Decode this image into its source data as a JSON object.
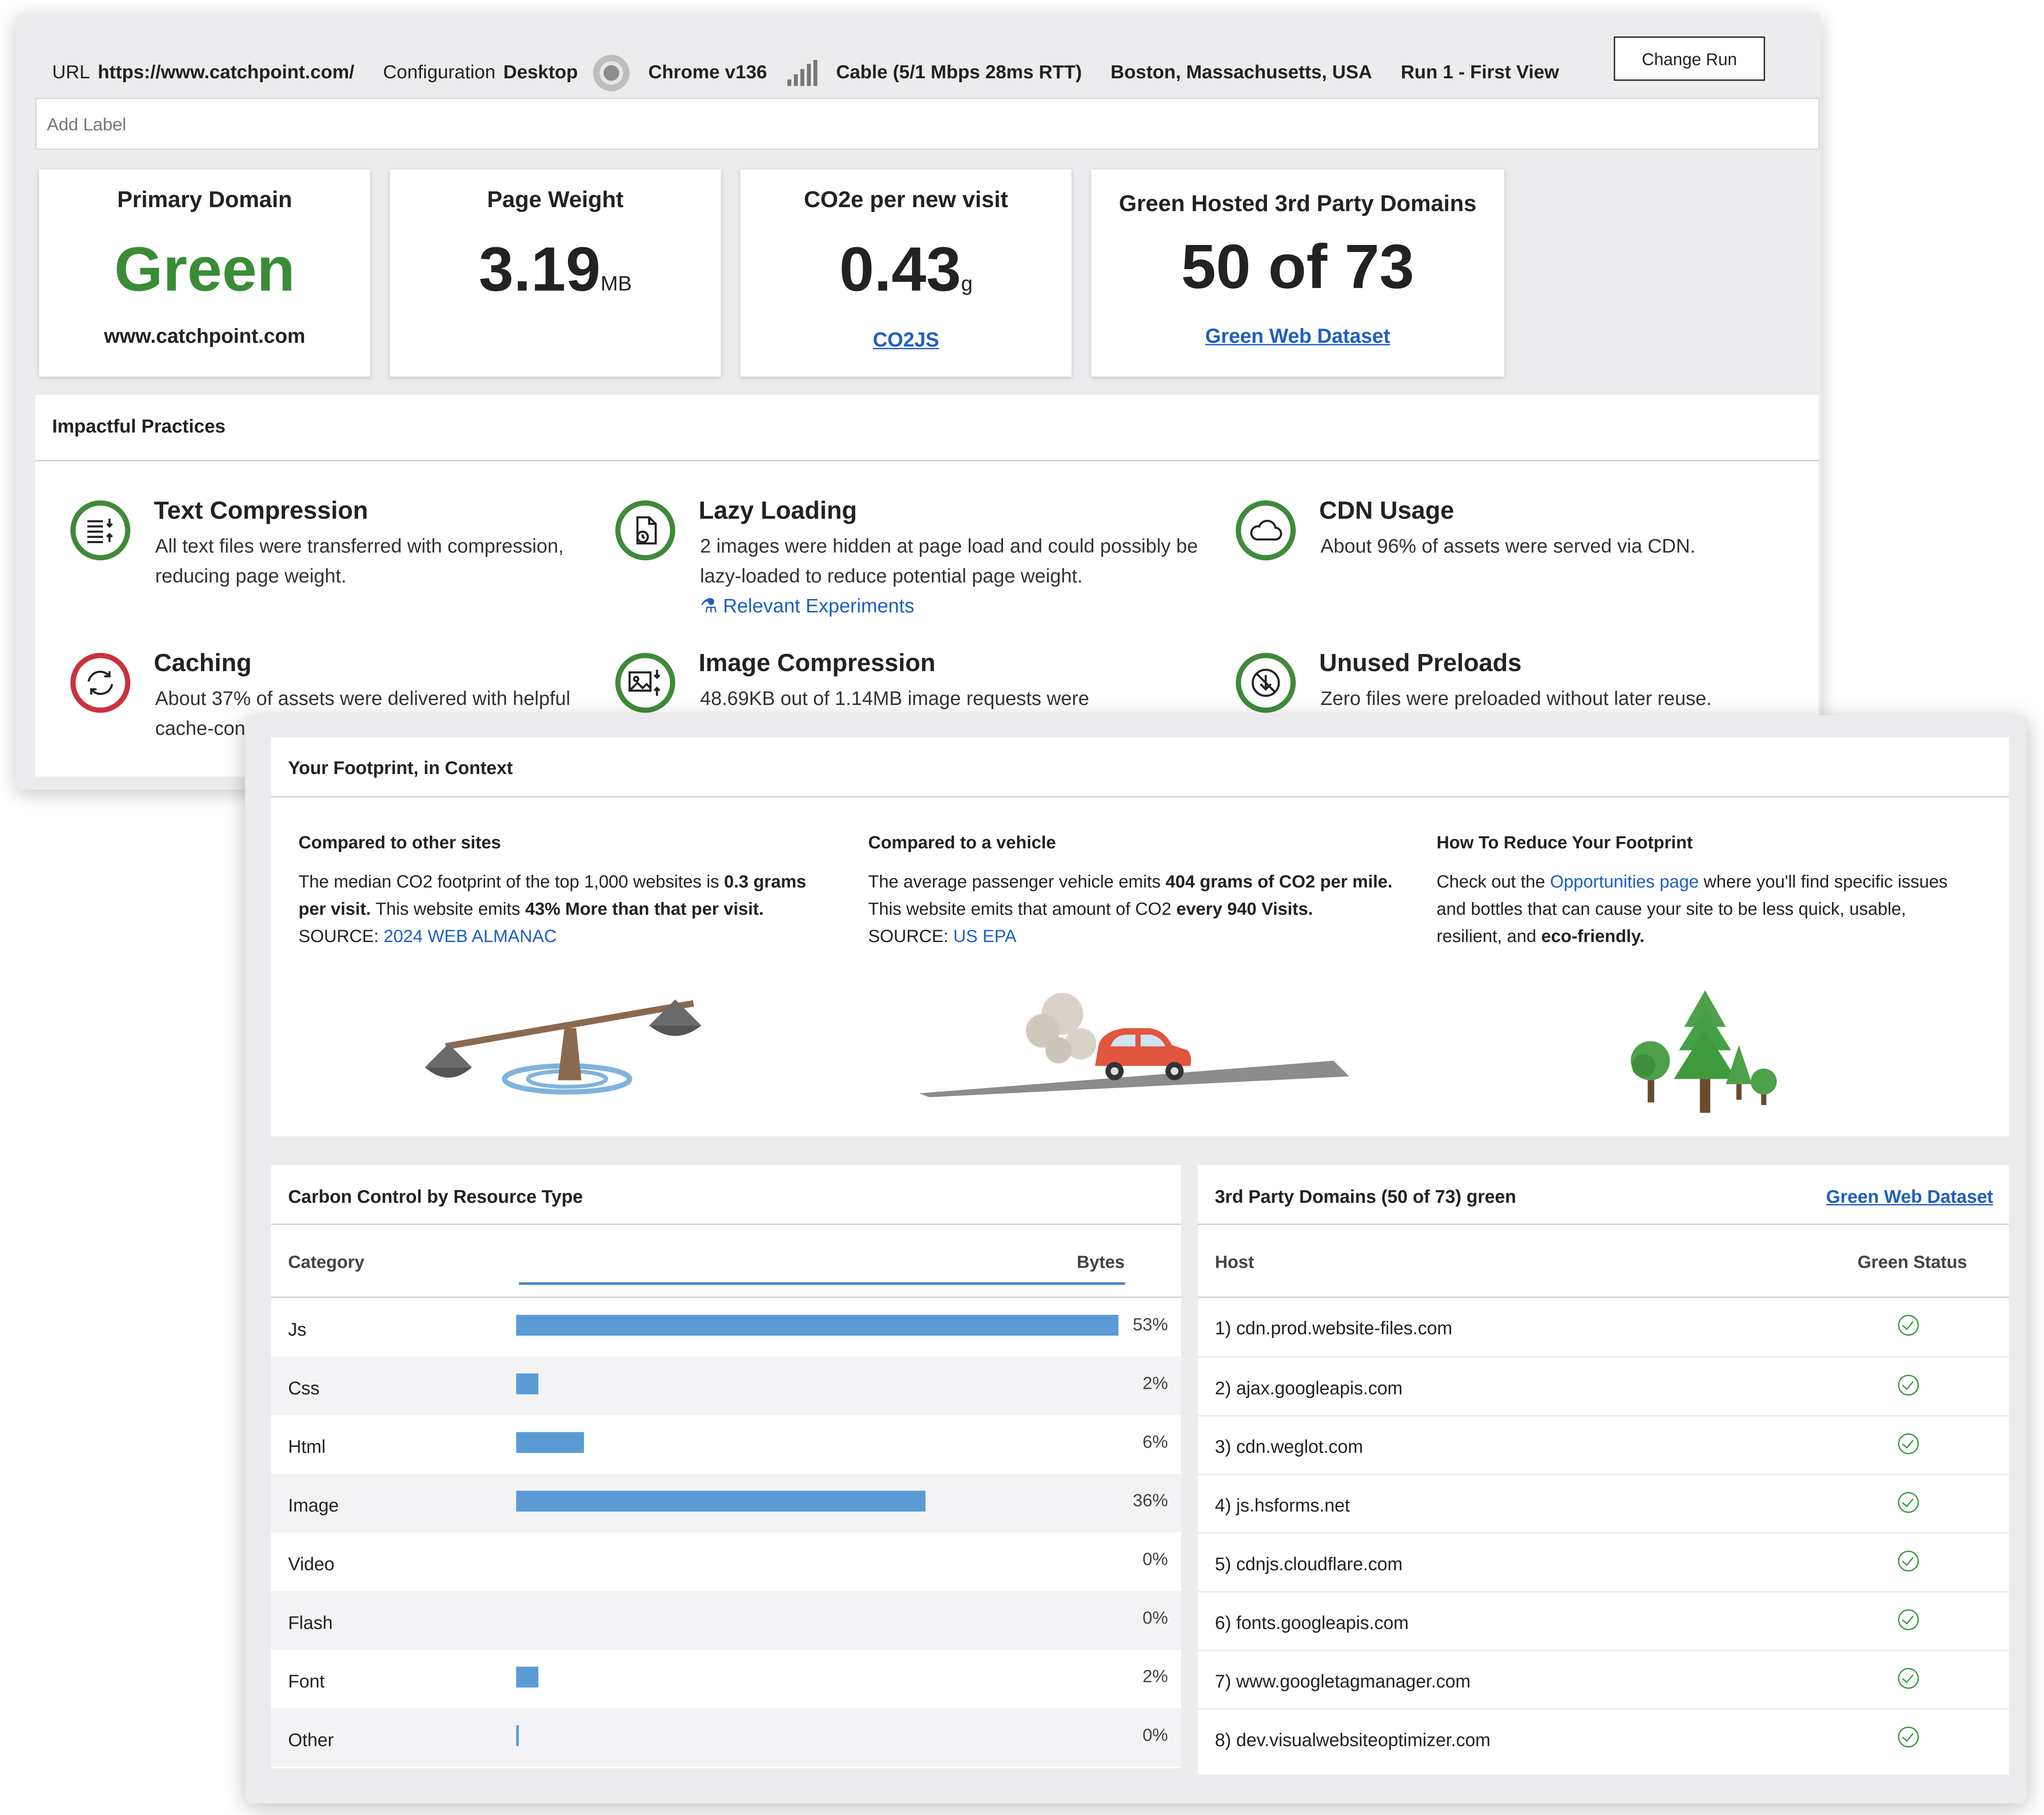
{
  "topbar": {
    "url_label": "URL",
    "url_value": "https://www.catchpoint.com/",
    "config_label": "Configuration",
    "config_value": "Desktop",
    "browser": "Chrome v136",
    "connection": "Cable (5/1 Mbps 28ms RTT)",
    "location": "Boston, Massachusetts, USA",
    "run": "Run 1 - First View",
    "change_run": "Change Run",
    "browser_icon": "chrome-icon",
    "signal_icon": "signal-strength-icon"
  },
  "add_label": {
    "placeholder": "Add Label"
  },
  "cards": {
    "primary_domain": {
      "title": "Primary Domain",
      "value": "Green",
      "sub": "www.catchpoint.com",
      "value_color": "#3a8c37"
    },
    "page_weight": {
      "title": "Page Weight",
      "value": "3.19",
      "unit": "MB"
    },
    "co2": {
      "title": "CO2e per new visit",
      "value": "0.43",
      "unit": "g",
      "link": "CO2JS"
    },
    "green_hosted": {
      "title": "Green Hosted 3rd Party Domains",
      "value": "50 of 73",
      "link": "Green Web Dataset"
    }
  },
  "practices": {
    "heading": "Impactful Practices",
    "items": [
      {
        "title": "Text Compression",
        "desc": "All text files were transferred with compression, reducing page weight.",
        "status": "good",
        "icon": "compression-icon"
      },
      {
        "title": "Lazy Loading",
        "desc": "2 images were hidden at page load and could possibly be lazy-loaded to reduce potential page weight.",
        "link": "Relevant Experiments",
        "status": "good",
        "icon": "lazy-load-icon"
      },
      {
        "title": "CDN Usage",
        "desc": "About 96% of assets were served via CDN.",
        "status": "good",
        "icon": "cloud-icon"
      },
      {
        "title": "Caching",
        "desc": "About 37% of assets were delivered with helpful cache-con",
        "status": "bad",
        "icon": "cache-refresh-icon"
      },
      {
        "title": "Image Compression",
        "desc": "48.69KB out of 1.14MB image requests were",
        "status": "good",
        "icon": "image-compression-icon"
      },
      {
        "title": "Unused Preloads",
        "desc": "Zero files were preloaded without later reuse.",
        "status": "good",
        "icon": "no-preload-icon"
      }
    ]
  },
  "context": {
    "heading": "Your Footprint, in Context",
    "sites": {
      "title": "Compared to other sites",
      "t1": "The median CO2 footprint of the top 1,000 websites is ",
      "b1": "0.3 grams per visit.",
      "t2": " This website emits ",
      "b2": "43% More than that per visit.",
      "source_label": "SOURCE: ",
      "source_link": "2024 WEB ALMANAC"
    },
    "vehicle": {
      "title": "Compared to a vehicle",
      "t1": "The average passenger vehicle emits ",
      "b1": "404 grams of CO2 per mile.",
      "t2": " This website emits that amount of CO2 ",
      "b2": "every 940 Visits.",
      "source_label": "SOURCE: ",
      "source_link": "US EPA"
    },
    "reduce": {
      "title": "How To Reduce Your Footprint",
      "t1": "Check out the ",
      "link": "Opportunities page",
      "t2": " where you'll find specific issues and bottles that can cause your site to be less quick, usable, resilient, and ",
      "b1": "eco-friendly."
    }
  },
  "carbon": {
    "heading": "Carbon Control by Resource Type",
    "col_category": "Category",
    "col_bytes": "Bytes",
    "bar_color": "#5b9bd5",
    "rows": [
      {
        "category": "Js",
        "percent": 53,
        "label": "53%"
      },
      {
        "category": "Css",
        "percent": 2,
        "label": "2%"
      },
      {
        "category": "Html",
        "percent": 6,
        "label": "6%"
      },
      {
        "category": "Image",
        "percent": 36,
        "label": "36%"
      },
      {
        "category": "Video",
        "percent": 0,
        "label": "0%"
      },
      {
        "category": "Flash",
        "percent": 0,
        "label": "0%"
      },
      {
        "category": "Font",
        "percent": 2,
        "label": "2%"
      },
      {
        "category": "Other",
        "percent": 0,
        "label": "0%"
      }
    ]
  },
  "hosts": {
    "heading": "3rd Party Domains (50 of 73) green",
    "link": "Green Web Dataset",
    "col_host": "Host",
    "col_status": "Green Status",
    "rows": [
      {
        "host": "1) cdn.prod.website-files.com",
        "green": true
      },
      {
        "host": "2) ajax.googleapis.com",
        "green": true
      },
      {
        "host": "3) cdn.weglot.com",
        "green": true
      },
      {
        "host": "4) js.hsforms.net",
        "green": true
      },
      {
        "host": "5) cdnjs.cloudflare.com",
        "green": true
      },
      {
        "host": "6) fonts.googleapis.com",
        "green": true
      },
      {
        "host": "7) www.googletagmanager.com",
        "green": true
      },
      {
        "host": "8) dev.visualwebsiteoptimizer.com",
        "green": true
      }
    ]
  }
}
